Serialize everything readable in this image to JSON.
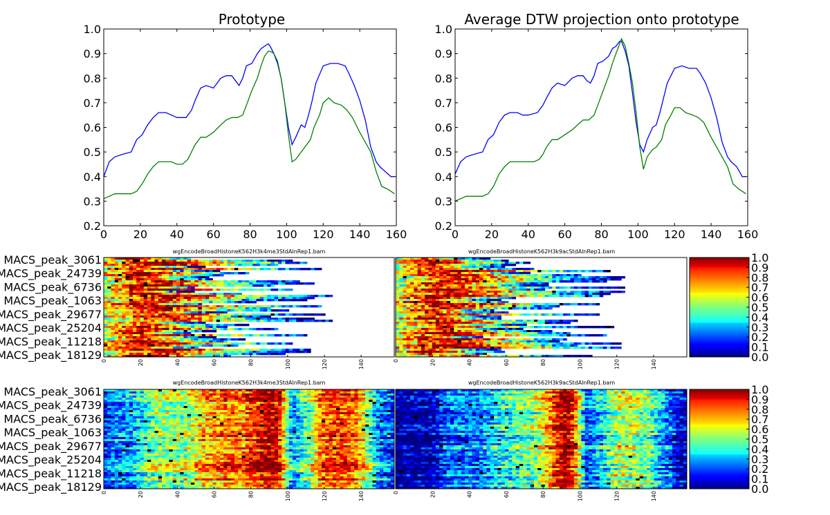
{
  "chart_data": [
    {
      "type": "line",
      "title": "Prototype",
      "xlim": [
        0,
        160
      ],
      "ylim": [
        0.2,
        1.0
      ],
      "xticks": [
        "0",
        "20",
        "40",
        "60",
        "80",
        "100",
        "120",
        "140",
        "160"
      ],
      "yticks": [
        "0.2",
        "0.3",
        "0.4",
        "0.5",
        "0.6",
        "0.7",
        "0.8",
        "0.9",
        "1.0"
      ],
      "series": [
        {
          "color": "#0000ff",
          "x": [
            0,
            3,
            6,
            10,
            15,
            18,
            21,
            24,
            27,
            30,
            34,
            37,
            40,
            45,
            48,
            50,
            53,
            56,
            60,
            64,
            67,
            70,
            72,
            74,
            76,
            78,
            81,
            84,
            86,
            88,
            90,
            91,
            93,
            95,
            97,
            99,
            101,
            103,
            105,
            108,
            110,
            112,
            114,
            116,
            120,
            124,
            128,
            132,
            134,
            137,
            140,
            143,
            146,
            149,
            151,
            154,
            157,
            159
          ],
          "y": [
            0.4,
            0.46,
            0.48,
            0.49,
            0.5,
            0.55,
            0.57,
            0.61,
            0.64,
            0.66,
            0.66,
            0.65,
            0.64,
            0.64,
            0.67,
            0.71,
            0.76,
            0.77,
            0.76,
            0.8,
            0.81,
            0.81,
            0.79,
            0.77,
            0.8,
            0.85,
            0.86,
            0.9,
            0.92,
            0.93,
            0.94,
            0.93,
            0.9,
            0.86,
            0.8,
            0.7,
            0.6,
            0.53,
            0.56,
            0.61,
            0.6,
            0.65,
            0.71,
            0.78,
            0.85,
            0.86,
            0.86,
            0.85,
            0.82,
            0.77,
            0.71,
            0.63,
            0.52,
            0.46,
            0.44,
            0.42,
            0.4,
            0.4
          ]
        },
        {
          "color": "#008000",
          "x": [
            0,
            3,
            6,
            10,
            15,
            18,
            21,
            24,
            27,
            30,
            34,
            37,
            40,
            43,
            46,
            48,
            50,
            53,
            56,
            60,
            64,
            67,
            70,
            73,
            76,
            79,
            81,
            84,
            86,
            88,
            90,
            91,
            93,
            95,
            97,
            99,
            101,
            103,
            105,
            108,
            110,
            113,
            115,
            118,
            120,
            123,
            126,
            130,
            133,
            136,
            140,
            143,
            146,
            149,
            152,
            155,
            157,
            159
          ],
          "y": [
            0.31,
            0.32,
            0.33,
            0.33,
            0.33,
            0.34,
            0.37,
            0.41,
            0.44,
            0.46,
            0.46,
            0.46,
            0.45,
            0.45,
            0.47,
            0.5,
            0.53,
            0.56,
            0.56,
            0.58,
            0.61,
            0.63,
            0.64,
            0.64,
            0.65,
            0.71,
            0.75,
            0.8,
            0.85,
            0.89,
            0.91,
            0.91,
            0.9,
            0.87,
            0.8,
            0.7,
            0.57,
            0.46,
            0.47,
            0.5,
            0.52,
            0.55,
            0.6,
            0.65,
            0.7,
            0.72,
            0.7,
            0.69,
            0.67,
            0.64,
            0.58,
            0.54,
            0.5,
            0.42,
            0.36,
            0.35,
            0.34,
            0.33
          ]
        }
      ]
    },
    {
      "type": "line",
      "title": "Average DTW projection onto prototype",
      "xlim": [
        0,
        160
      ],
      "ylim": [
        0.2,
        1.0
      ],
      "xticks": [
        "0",
        "20",
        "40",
        "60",
        "80",
        "100",
        "120",
        "140",
        "160"
      ],
      "yticks": [
        "0.2",
        "0.3",
        "0.4",
        "0.5",
        "0.6",
        "0.7",
        "0.8",
        "0.9",
        "1.0"
      ],
      "series": [
        {
          "color": "#0000ff",
          "x": [
            0,
            3,
            6,
            10,
            15,
            18,
            21,
            24,
            27,
            30,
            34,
            37,
            40,
            45,
            48,
            50,
            53,
            56,
            60,
            64,
            67,
            70,
            72,
            74,
            76,
            78,
            81,
            84,
            86,
            88,
            90,
            91,
            93,
            95,
            97,
            99,
            101,
            103,
            105,
            108,
            110,
            112,
            114,
            116,
            120,
            124,
            128,
            132,
            134,
            137,
            140,
            143,
            146,
            149,
            151,
            154,
            157,
            159
          ],
          "y": [
            0.41,
            0.46,
            0.48,
            0.49,
            0.5,
            0.55,
            0.57,
            0.62,
            0.65,
            0.66,
            0.66,
            0.65,
            0.65,
            0.66,
            0.69,
            0.72,
            0.76,
            0.78,
            0.77,
            0.8,
            0.81,
            0.81,
            0.79,
            0.78,
            0.81,
            0.86,
            0.87,
            0.89,
            0.92,
            0.93,
            0.95,
            0.95,
            0.91,
            0.85,
            0.74,
            0.62,
            0.53,
            0.5,
            0.55,
            0.6,
            0.61,
            0.66,
            0.72,
            0.78,
            0.84,
            0.85,
            0.84,
            0.84,
            0.82,
            0.78,
            0.72,
            0.64,
            0.54,
            0.48,
            0.46,
            0.44,
            0.4,
            0.4
          ]
        },
        {
          "color": "#008000",
          "x": [
            0,
            3,
            6,
            10,
            15,
            18,
            21,
            24,
            27,
            30,
            34,
            37,
            40,
            43,
            46,
            48,
            50,
            53,
            56,
            60,
            64,
            67,
            70,
            73,
            76,
            79,
            81,
            84,
            86,
            88,
            90,
            91,
            93,
            95,
            97,
            99,
            101,
            103,
            105,
            108,
            110,
            113,
            115,
            118,
            120,
            123,
            126,
            130,
            133,
            136,
            140,
            143,
            146,
            149,
            152,
            155,
            157,
            159
          ],
          "y": [
            0.3,
            0.31,
            0.32,
            0.32,
            0.32,
            0.33,
            0.36,
            0.41,
            0.44,
            0.46,
            0.46,
            0.46,
            0.46,
            0.46,
            0.47,
            0.49,
            0.52,
            0.55,
            0.55,
            0.57,
            0.59,
            0.61,
            0.63,
            0.63,
            0.65,
            0.71,
            0.75,
            0.81,
            0.86,
            0.9,
            0.94,
            0.96,
            0.93,
            0.86,
            0.78,
            0.66,
            0.52,
            0.43,
            0.48,
            0.51,
            0.52,
            0.55,
            0.61,
            0.65,
            0.68,
            0.68,
            0.66,
            0.65,
            0.64,
            0.62,
            0.56,
            0.52,
            0.48,
            0.44,
            0.37,
            0.35,
            0.34,
            0.33
          ]
        }
      ]
    },
    {
      "type": "heatmap",
      "title": "wgEncodeBroadHistoneK562H3k4me3StdAlnRep1.bam",
      "xticks": [
        "0",
        "20",
        "40",
        "60",
        "80",
        "100",
        "120",
        "140"
      ],
      "row_labels": [
        "MACS_peak_3061",
        "MACS_peak_24739",
        "MACS_peak_6736",
        "MACS_peak_1063",
        "MACS_peak_29677",
        "MACS_peak_25204",
        "MACS_peak_11218",
        "MACS_peak_18129"
      ]
    },
    {
      "type": "heatmap",
      "title": "wgEncodeBroadHistoneK562H3k9acStdAlnRep1.bam",
      "xticks": [
        "0",
        "20",
        "40",
        "60",
        "80",
        "100",
        "120",
        "140"
      ]
    },
    {
      "type": "heatmap",
      "title": "wgEncodeBroadHistoneK562H3k4me3StdAlnRep1.bam",
      "xticks": [
        "0",
        "20",
        "40",
        "60",
        "80",
        "100",
        "120",
        "140"
      ],
      "row_labels": [
        "MACS_peak_3061",
        "MACS_peak_24739",
        "MACS_peak_6736",
        "MACS_peak_1063",
        "MACS_peak_29677",
        "MACS_peak_25204",
        "MACS_peak_11218",
        "MACS_peak_18129"
      ]
    },
    {
      "type": "heatmap",
      "title": "wgEncodeBroadHistoneK562H3k9acStdAlnRep1.bam",
      "xticks": [
        "0",
        "20",
        "40",
        "60",
        "80",
        "100",
        "120",
        "140"
      ]
    }
  ],
  "colorbar": {
    "ticks": [
      "1.0",
      "0.9",
      "0.8",
      "0.7",
      "0.6",
      "0.5",
      "0.4",
      "0.3",
      "0.2",
      "0.1",
      "0.0"
    ],
    "colormap": "jet"
  }
}
